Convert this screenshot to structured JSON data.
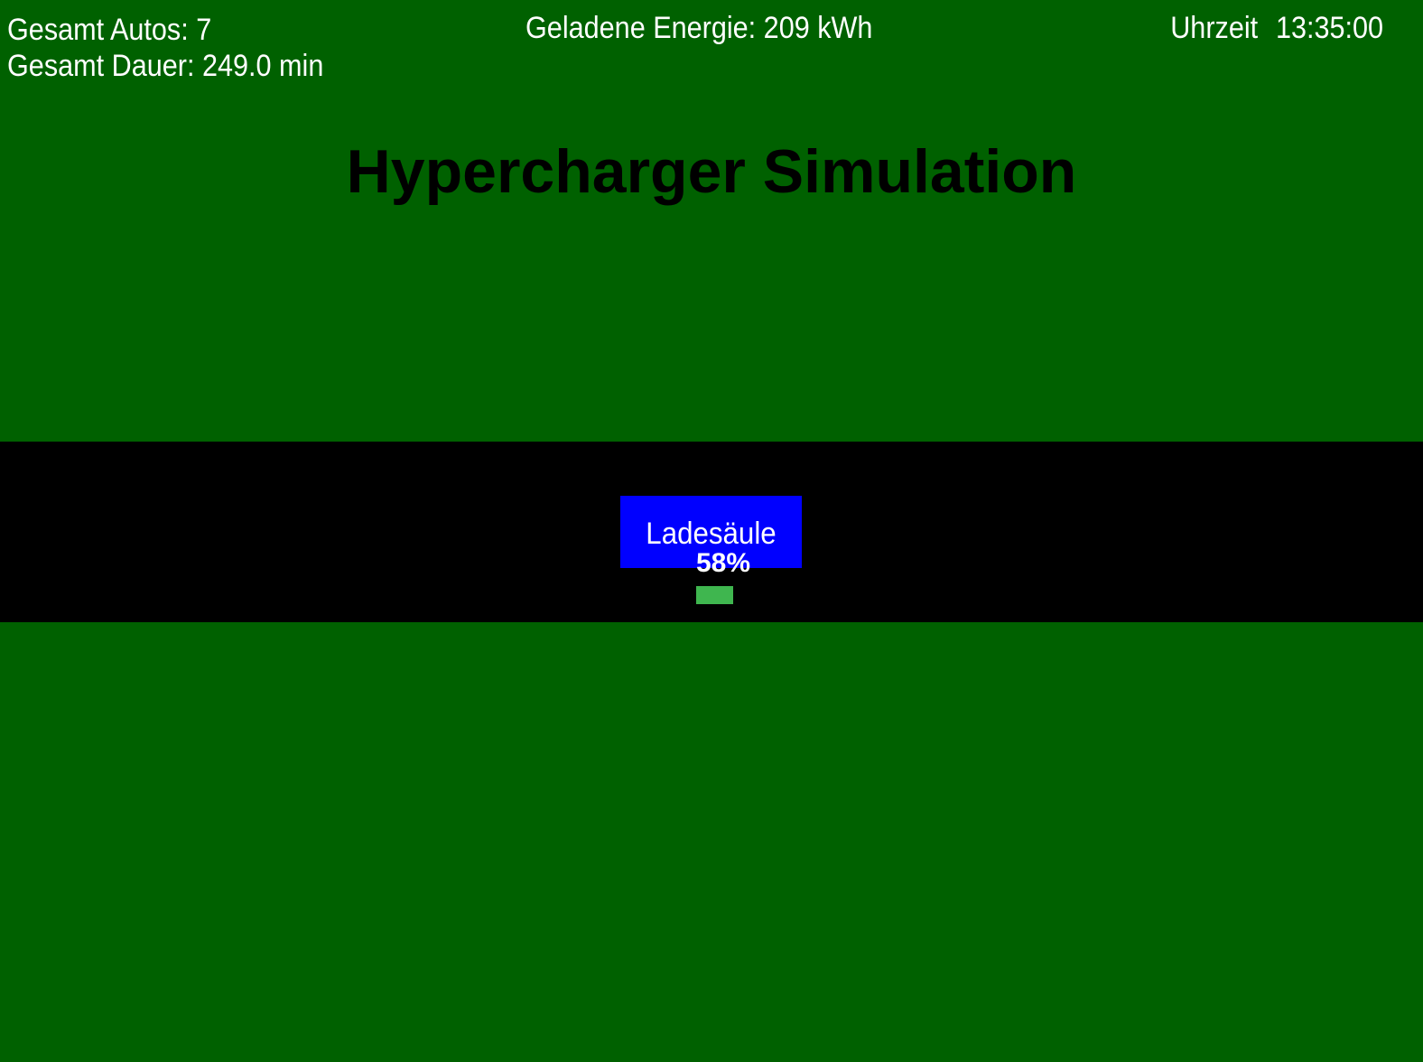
{
  "header": {
    "total_cars": "Gesamt Autos: 7",
    "total_duration": "Gesamt Dauer: 249.0 min",
    "charged_energy": "Geladene Energie: 209 kWh",
    "clock_label": "Uhrzeit",
    "clock_time": "13:35:00"
  },
  "title": "Hypercharger Simulation",
  "station": {
    "label": "Ladesäule",
    "charge_percent_text": "58%",
    "charge_fraction": 0.58
  },
  "colors": {
    "background": "#006100",
    "road": "#000000",
    "station": "#0000ff",
    "charge_bar": "#3fb64f",
    "text": "#ffffff",
    "title": "#000000"
  }
}
